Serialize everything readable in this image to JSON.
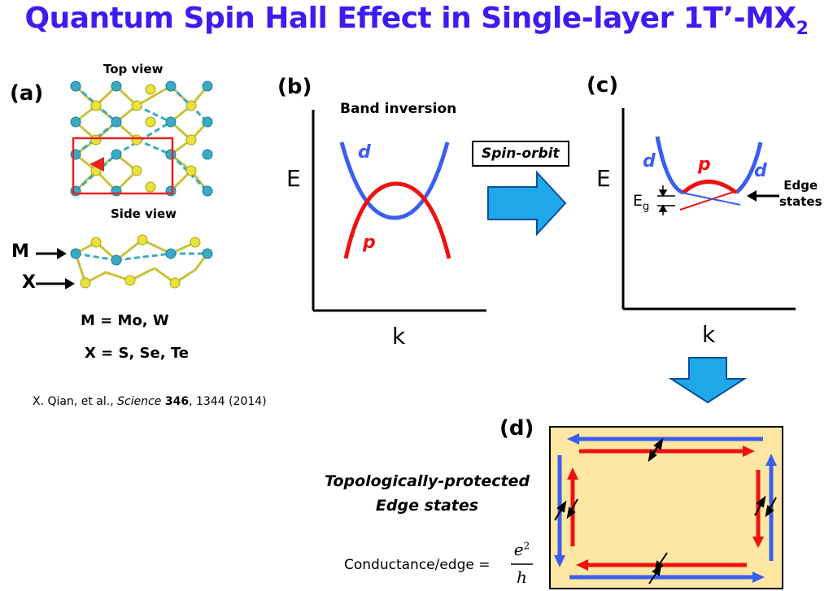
{
  "title": {
    "main": "Quantum Spin Hall Effect in Single-layer 1T’-MX",
    "sub": "2"
  },
  "panel_a": {
    "label": "(a)",
    "top_view": "Top view",
    "side_view": "Side view",
    "m_label": "M",
    "x_label": "X",
    "m_def": "M = Mo, W",
    "x_def": "X = S, Se, Te"
  },
  "citation": {
    "pre": "X. Qian, et al., ",
    "journal": "Science",
    "volume": "346",
    "rest": ", 1344  (2014)"
  },
  "panel_b": {
    "label": "(b)",
    "heading": "Band inversion",
    "energy": "E",
    "k": "k",
    "d": "d",
    "p": "p"
  },
  "spin_orbit": "Spin-orbit",
  "panel_c": {
    "label": "(c)",
    "energy": "E",
    "k": "k",
    "d_left": "d",
    "d_right": "d",
    "p": "p",
    "gap": "E",
    "gap_sub": "g",
    "edge_states": [
      "Edge",
      "states"
    ]
  },
  "panel_d": {
    "label": "(d)",
    "topo": [
      "Topologically-protected",
      "Edge states"
    ]
  },
  "conductance": {
    "label": "Conductance/edge =",
    "num_base": "e",
    "num_exp": "2",
    "den": "h"
  },
  "colors": {
    "title": "#3b1df0",
    "d_band": "#3a5ef0",
    "p_band": "#ee1111",
    "arrow_fill": "#1ea8ea",
    "sample_bg": "#fde7a2",
    "atom_m": "#3aaac4",
    "atom_x": "#e8e23a"
  }
}
